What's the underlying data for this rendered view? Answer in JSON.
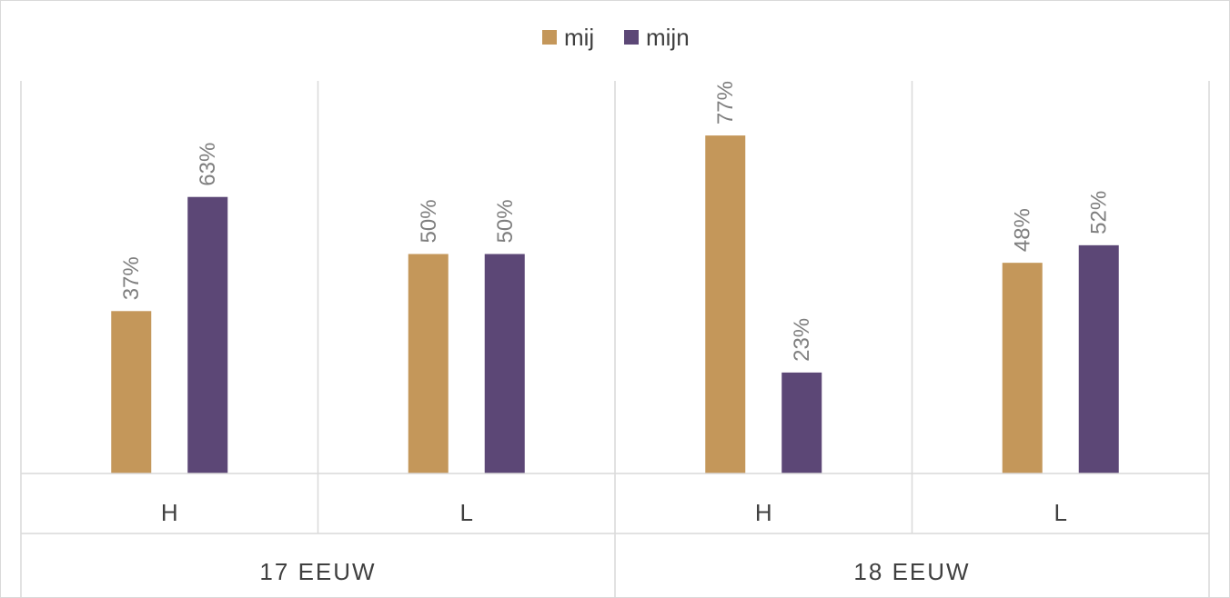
{
  "chart_data": {
    "type": "bar",
    "groups": [
      {
        "label": "17 EEUW",
        "categories": [
          "H",
          "L"
        ]
      },
      {
        "label": "18 EEUW",
        "categories": [
          "H",
          "L"
        ]
      }
    ],
    "categories": [
      "H",
      "L",
      "H",
      "L"
    ],
    "series": [
      {
        "name": "mij",
        "color": "#c4975a",
        "values": [
          37,
          50,
          77,
          48
        ],
        "labels": [
          "37%",
          "50%",
          "77%",
          "48%"
        ]
      },
      {
        "name": "mijn",
        "color": "#5c4776",
        "values": [
          63,
          50,
          23,
          52
        ],
        "labels": [
          "63%",
          "50%",
          "23%",
          "52%"
        ]
      }
    ],
    "ylim": [
      0,
      100
    ],
    "legend": "top-center",
    "grid": false
  }
}
